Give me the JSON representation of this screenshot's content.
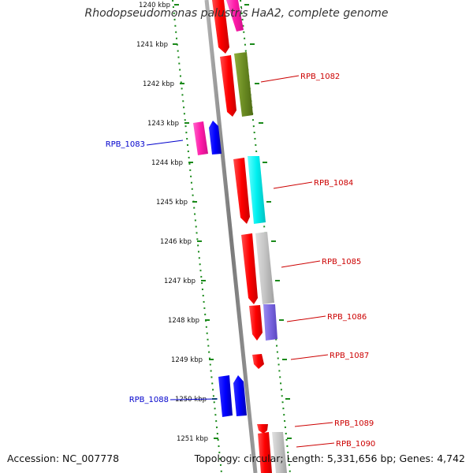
{
  "title": "Rhodopseudomonas palustris HaA2, complete genome",
  "footer": {
    "accession": "Accession: NC_007778",
    "summary": "Topology: circular; Length: 5,331,656 bp; Genes: 4,742"
  },
  "axis": {
    "tick_labels": [
      "1240 kbp",
      "1241 kbp",
      "1242 kbp",
      "1243 kbp",
      "1244 kbp",
      "1245 kbp",
      "1246 kbp",
      "1247 kbp",
      "1248 kbp",
      "1249 kbp",
      "1250 kbp",
      "1251 kbp"
    ]
  },
  "genes": [
    {
      "label": "",
      "strand": "reverse",
      "color": "#ff2aa0"
    },
    {
      "label": "",
      "strand": "reverse",
      "color": "#6f8f1e"
    },
    {
      "label": "RPB_1082",
      "strand": "reverse",
      "color": "#cc0000"
    },
    {
      "label": "RPB_1083",
      "strand": "forward",
      "color": "#0000cc"
    },
    {
      "label": "RPB_1084",
      "strand": "reverse",
      "color": "#cc0000"
    },
    {
      "label": "RPB_1085",
      "strand": "reverse",
      "color": "#cc0000"
    },
    {
      "label": "RPB_1086",
      "strand": "reverse",
      "color": "#cc0000"
    },
    {
      "label": "RPB_1087",
      "strand": "reverse",
      "color": "#cc0000"
    },
    {
      "label": "RPB_1088",
      "strand": "forward",
      "color": "#0000cc"
    },
    {
      "label": "RPB_1089",
      "strand": "reverse",
      "color": "#cc0000"
    },
    {
      "label": "RPB_1090",
      "strand": "reverse",
      "color": "#cc0000"
    }
  ],
  "colors": {
    "reverse_gene": "#ff0000",
    "forward_gene": "#0000ff",
    "backbone": "#808080",
    "ticks": "#1a8a1a"
  }
}
